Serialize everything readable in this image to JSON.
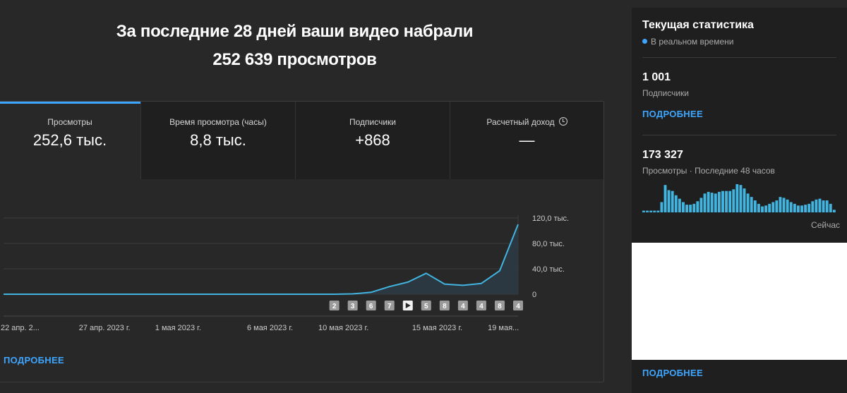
{
  "header": {
    "line1": "За последние 28 дней ваши видео набрали",
    "line2": "252 639 просмотров"
  },
  "tabs": [
    {
      "label": "Просмотры",
      "value": "252,6 тыс.",
      "active": true
    },
    {
      "label": "Время просмотра (часы)",
      "value": "8,8 тыс.",
      "active": false
    },
    {
      "label": "Подписчики",
      "value": "+868",
      "active": false
    },
    {
      "label": "Расчетный доход",
      "value": "—",
      "active": false,
      "icon": "clock-icon"
    }
  ],
  "chart_data": {
    "type": "line",
    "series": [
      {
        "values": [
          0,
          0,
          0,
          0,
          0,
          0,
          0,
          0,
          0,
          0,
          0,
          0,
          0,
          0,
          0,
          0,
          0,
          0,
          0,
          500,
          3000,
          12000,
          19000,
          33000,
          16000,
          14000,
          17000,
          37000,
          110000
        ]
      }
    ],
    "ylim": [
      0,
      120000
    ],
    "y_ticks": [
      {
        "value": 0,
        "label": "0"
      },
      {
        "value": 40000,
        "label": "40,0 тыс."
      },
      {
        "value": 80000,
        "label": "80,0 тыс."
      },
      {
        "value": 120000,
        "label": "120,0 тыс."
      }
    ],
    "x_tick_labels": [
      {
        "index": 0.9,
        "label": "22 апр. 2..."
      },
      {
        "index": 5.5,
        "label": "27 апр. 2023 г."
      },
      {
        "index": 9.5,
        "label": "1 мая 2023 г."
      },
      {
        "index": 14.5,
        "label": "6 мая 2023 г."
      },
      {
        "index": 18.5,
        "label": "10 мая 2023 г."
      },
      {
        "index": 23.6,
        "label": "15 мая 2023 г."
      },
      {
        "index": 27.2,
        "label": "19 мая..."
      }
    ],
    "markers": [
      {
        "index": 18,
        "label": "2"
      },
      {
        "index": 19,
        "label": "3"
      },
      {
        "index": 20,
        "label": "6"
      },
      {
        "index": 21,
        "label": "7"
      },
      {
        "index": 22,
        "label": "play"
      },
      {
        "index": 23,
        "label": "5"
      },
      {
        "index": 24,
        "label": "8"
      },
      {
        "index": 25,
        "label": "4"
      },
      {
        "index": 26,
        "label": "4"
      },
      {
        "index": 27,
        "label": "8"
      },
      {
        "index": 28,
        "label": "4"
      }
    ],
    "grid": true,
    "color": "#41b4e0"
  },
  "main_more_link": "ПОДРОБНЕЕ",
  "realtime": {
    "title": "Текущая статистика",
    "subtitle": "В реальном времени",
    "subscribers_value": "1 001",
    "subscribers_label": "Подписчики",
    "more_link": "ПОДРОБНЕЕ",
    "views_value": "173 327",
    "views_label": "Просмотры · Последние 48 часов",
    "now_label": "Сейчас",
    "bottom_more_link": "ПОДРОБНЕЕ",
    "bar_values": [
      2,
      2,
      2,
      2,
      2,
      12,
      32,
      26,
      25,
      20,
      16,
      12,
      9,
      9,
      10,
      13,
      17,
      22,
      24,
      23,
      22,
      24,
      25,
      25,
      25,
      27,
      33,
      32,
      28,
      22,
      18,
      14,
      10,
      7,
      8,
      10,
      12,
      14,
      18,
      17,
      15,
      12,
      10,
      8,
      8,
      9,
      10,
      13,
      15,
      16,
      14,
      14,
      10,
      3
    ]
  }
}
